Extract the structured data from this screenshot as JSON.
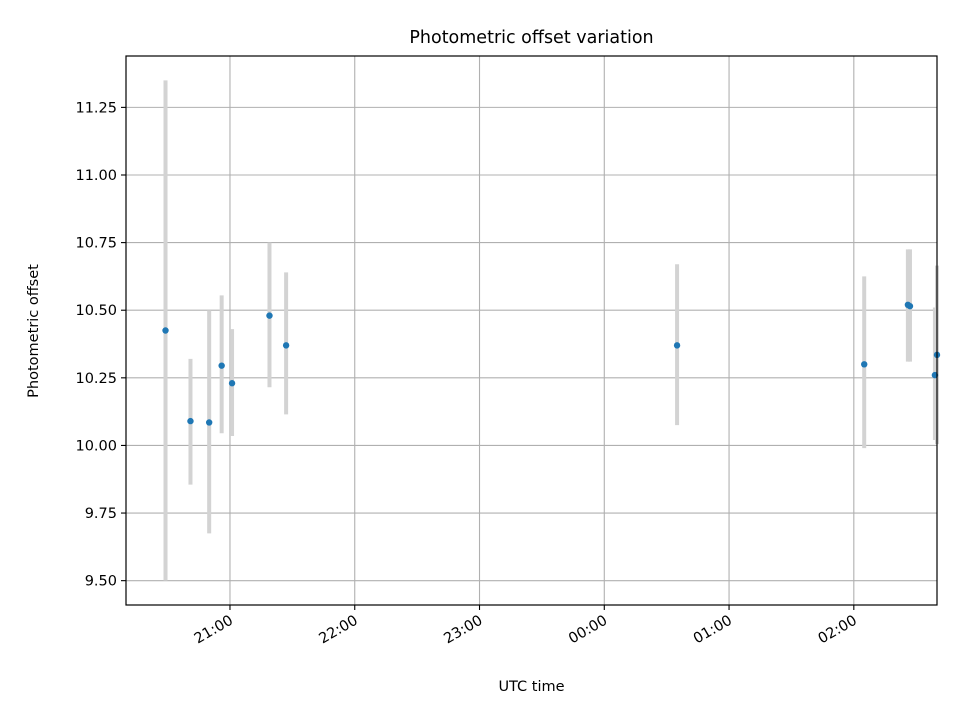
{
  "chart_data": {
    "type": "scatter",
    "title": "Photometric offset variation",
    "xlabel": "UTC time",
    "ylabel": "Photometric offset",
    "x_axis_type": "time",
    "xlim": [
      "20:10",
      "02:40"
    ],
    "ylim": [
      9.41,
      11.44
    ],
    "x_ticks": [
      {
        "label": "21:00",
        "t": "21:00"
      },
      {
        "label": "22:00",
        "t": "22:00"
      },
      {
        "label": "23:00",
        "t": "23:00"
      },
      {
        "label": "00:00",
        "t": "00:00"
      },
      {
        "label": "01:00",
        "t": "01:00"
      },
      {
        "label": "02:00",
        "t": "02:00"
      }
    ],
    "y_ticks": [
      {
        "label": "9.50",
        "v": 9.5
      },
      {
        "label": "9.75",
        "v": 9.75
      },
      {
        "label": "10.00",
        "v": 10.0
      },
      {
        "label": "10.25",
        "v": 10.25
      },
      {
        "label": "10.50",
        "v": 10.5
      },
      {
        "label": "10.75",
        "v": 10.75
      },
      {
        "label": "11.00",
        "v": 11.0
      },
      {
        "label": "11.25",
        "v": 11.25
      }
    ],
    "grid": true,
    "marker_color": "#1f77b4",
    "errorbar_color": "#d3d3d3",
    "points": [
      {
        "t": "20:29",
        "y": 10.425,
        "yerr_low": 9.5,
        "yerr_high": 11.35
      },
      {
        "t": "20:41",
        "y": 10.09,
        "yerr_low": 9.855,
        "yerr_high": 10.32
      },
      {
        "t": "20:50",
        "y": 10.085,
        "yerr_low": 9.675,
        "yerr_high": 10.5
      },
      {
        "t": "20:56",
        "y": 10.295,
        "yerr_low": 10.045,
        "yerr_high": 10.555
      },
      {
        "t": "21:01",
        "y": 10.23,
        "yerr_low": 10.035,
        "yerr_high": 10.43
      },
      {
        "t": "21:19",
        "y": 10.48,
        "yerr_low": 10.215,
        "yerr_high": 10.75
      },
      {
        "t": "21:27",
        "y": 10.37,
        "yerr_low": 10.115,
        "yerr_high": 10.64
      },
      {
        "t": "00:35",
        "y": 10.37,
        "yerr_low": 10.075,
        "yerr_high": 10.67
      },
      {
        "t": "02:05",
        "y": 10.3,
        "yerr_low": 9.99,
        "yerr_high": 10.625
      },
      {
        "t": "02:26",
        "y": 10.52,
        "yerr_low": 10.31,
        "yerr_high": 10.725
      },
      {
        "t": "02:27",
        "y": 10.515,
        "yerr_low": 10.31,
        "yerr_high": 10.725
      },
      {
        "t": "02:39",
        "y": 10.26,
        "yerr_low": 10.02,
        "yerr_high": 10.51
      },
      {
        "t": "02:40",
        "y": 10.335,
        "yerr_low": 10.005,
        "yerr_high": 10.665
      }
    ]
  }
}
